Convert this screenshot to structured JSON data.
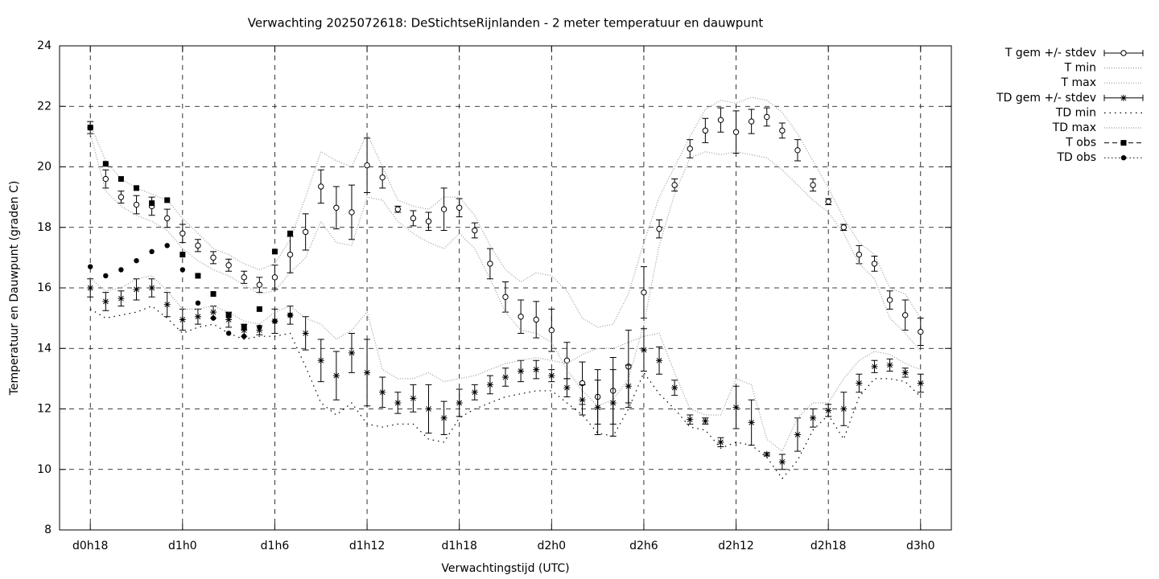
{
  "chart_data": {
    "type": "line",
    "title": "Verwachting 2025072618: DeStichtseRijnlanden - 2 meter temperatuur en dauwpunt",
    "xlabel": "Verwachtingstijd (UTC)",
    "ylabel": "Temperatuur en Dauwpunt (graden C)",
    "xlim": [
      -2,
      56
    ],
    "ylim": [
      8,
      24
    ],
    "xticks": [
      {
        "value": 0,
        "label": "d0h18"
      },
      {
        "value": 6,
        "label": "d1h0"
      },
      {
        "value": 12,
        "label": "d1h6"
      },
      {
        "value": 18,
        "label": "d1h12"
      },
      {
        "value": 24,
        "label": "d1h18"
      },
      {
        "value": 30,
        "label": "d2h0"
      },
      {
        "value": 36,
        "label": "d2h6"
      },
      {
        "value": 42,
        "label": "d2h12"
      },
      {
        "value": 48,
        "label": "d2h18"
      },
      {
        "value": 54,
        "label": "d3h0"
      }
    ],
    "yticks": [
      8,
      10,
      12,
      14,
      16,
      18,
      20,
      22,
      24
    ],
    "grid": true,
    "legend": "outside-right",
    "x": [
      0,
      1,
      2,
      3,
      4,
      5,
      6,
      7,
      8,
      9,
      10,
      11,
      12,
      13,
      14,
      15,
      16,
      17,
      18,
      19,
      20,
      21,
      22,
      23,
      24,
      25,
      26,
      27,
      28,
      29,
      30,
      31,
      32,
      33,
      34,
      35,
      36,
      37,
      38,
      39,
      40,
      41,
      42,
      43,
      44,
      45,
      46,
      47,
      48,
      49,
      50,
      51,
      52,
      53,
      54
    ],
    "series": [
      {
        "name": "T gem +/- stdev",
        "color": "#000000",
        "style": "errorbars-circle",
        "values": [
          21.3,
          19.6,
          19.0,
          18.75,
          18.7,
          18.3,
          17.8,
          17.4,
          17.0,
          16.75,
          16.35,
          16.1,
          16.35,
          17.1,
          17.85,
          19.35,
          18.65,
          18.5,
          20.05,
          19.65,
          18.6,
          18.3,
          18.2,
          18.6,
          18.65,
          17.9,
          16.8,
          15.7,
          15.05,
          14.95,
          14.6,
          13.6,
          12.85,
          12.4,
          12.6,
          13.4,
          15.85,
          17.95,
          19.4,
          20.6,
          21.2,
          21.55,
          21.15,
          21.5,
          21.65,
          21.2,
          20.55,
          19.4,
          18.85,
          18.0,
          17.1,
          16.8,
          15.6,
          15.1,
          14.55
        ],
        "errors": [
          0.2,
          0.3,
          0.2,
          0.3,
          0.3,
          0.3,
          0.3,
          0.2,
          0.2,
          0.2,
          0.2,
          0.25,
          0.4,
          0.6,
          0.6,
          0.55,
          0.7,
          0.9,
          0.9,
          0.35,
          0.1,
          0.25,
          0.3,
          0.7,
          0.3,
          0.25,
          0.5,
          0.5,
          0.55,
          0.6,
          0.7,
          0.6,
          0.7,
          0.9,
          1.1,
          1.2,
          0.85,
          0.3,
          0.2,
          0.3,
          0.4,
          0.4,
          0.7,
          0.4,
          0.3,
          0.25,
          0.35,
          0.2,
          0.1,
          0.1,
          0.3,
          0.25,
          0.3,
          0.5,
          0.45
        ]
      },
      {
        "name": "T min",
        "color": "#999999",
        "style": "dotted-fine",
        "values": [
          21.1,
          19.2,
          18.7,
          18.4,
          18.2,
          17.9,
          17.3,
          16.9,
          16.6,
          16.4,
          16.1,
          15.8,
          15.9,
          16.5,
          17.0,
          18.2,
          17.5,
          17.4,
          19.0,
          18.9,
          18.2,
          17.8,
          17.5,
          17.3,
          17.8,
          17.3,
          16.3,
          15.2,
          14.6,
          14.5,
          14.2,
          13.3,
          12.6,
          12.1,
          12.3,
          13.0,
          14.8,
          17.4,
          19.1,
          20.3,
          20.5,
          20.4,
          20.5,
          20.4,
          20.3,
          19.9,
          19.4,
          18.9,
          18.5,
          17.8,
          16.8,
          16.3,
          15.0,
          14.5,
          13.9
        ]
      },
      {
        "name": "T max",
        "color": "#999999",
        "style": "dotted-fine",
        "values": [
          21.4,
          20.2,
          19.6,
          19.3,
          19.1,
          18.9,
          18.3,
          17.8,
          17.3,
          17.1,
          16.8,
          16.6,
          16.8,
          17.6,
          19.0,
          20.5,
          20.2,
          20.0,
          21.1,
          20.0,
          18.9,
          18.7,
          18.6,
          19.0,
          19.0,
          18.4,
          17.4,
          16.6,
          16.2,
          16.5,
          16.4,
          15.9,
          15.0,
          14.7,
          14.8,
          15.8,
          17.5,
          19.0,
          20.0,
          21.0,
          21.9,
          22.2,
          22.1,
          22.3,
          22.2,
          21.8,
          21.1,
          20.2,
          19.3,
          18.3,
          17.5,
          17.1,
          16.0,
          15.8,
          15.0
        ]
      },
      {
        "name": "TD gem +/- stdev",
        "color": "#000000",
        "style": "errorbars-star",
        "values": [
          16.0,
          15.55,
          15.65,
          15.95,
          16.0,
          15.45,
          14.95,
          15.05,
          15.2,
          14.95,
          14.6,
          14.6,
          14.9,
          15.1,
          14.5,
          13.6,
          13.1,
          13.85,
          13.2,
          12.55,
          12.2,
          12.35,
          12.0,
          11.7,
          12.2,
          12.55,
          12.8,
          13.05,
          13.25,
          13.3,
          13.1,
          12.7,
          12.3,
          12.05,
          12.2,
          12.75,
          13.95,
          13.6,
          12.7,
          11.65,
          11.6,
          10.9,
          12.05,
          11.55,
          10.5,
          10.25,
          11.15,
          11.7,
          11.95,
          12.0,
          12.85,
          13.4,
          13.45,
          13.2,
          12.85
        ],
        "errors": [
          0.3,
          0.3,
          0.25,
          0.35,
          0.3,
          0.4,
          0.35,
          0.25,
          0.2,
          0.25,
          0.2,
          0.15,
          0.4,
          0.3,
          0.55,
          0.7,
          0.8,
          0.65,
          1.1,
          0.5,
          0.35,
          0.45,
          0.8,
          0.55,
          0.45,
          0.25,
          0.3,
          0.3,
          0.35,
          0.3,
          0.2,
          0.3,
          0.5,
          0.9,
          1.1,
          0.7,
          0.7,
          0.45,
          0.25,
          0.15,
          0.1,
          0.15,
          0.7,
          0.75,
          0.05,
          0.25,
          0.55,
          0.3,
          0.2,
          0.55,
          0.3,
          0.2,
          0.2,
          0.15,
          0.3
        ]
      },
      {
        "name": "TD min",
        "color": "#000000",
        "style": "dotted-coarse",
        "values": [
          15.3,
          15.0,
          15.1,
          15.2,
          15.4,
          15.0,
          14.5,
          14.7,
          14.8,
          14.5,
          14.3,
          14.4,
          14.4,
          14.5,
          13.4,
          12.2,
          11.8,
          12.2,
          11.5,
          11.4,
          11.5,
          11.5,
          11.0,
          10.9,
          11.7,
          12.0,
          12.2,
          12.4,
          12.5,
          12.6,
          12.6,
          12.2,
          11.8,
          11.2,
          11.1,
          12.0,
          13.2,
          12.5,
          12.0,
          11.4,
          11.3,
          10.7,
          10.9,
          10.8,
          10.4,
          9.7,
          10.3,
          11.3,
          11.8,
          11.0,
          12.4,
          13.0,
          13.0,
          12.9,
          12.4
        ]
      },
      {
        "name": "TD max",
        "color": "#999999",
        "style": "dotted-fine",
        "values": [
          16.3,
          15.9,
          16.0,
          16.3,
          16.4,
          15.9,
          15.3,
          15.3,
          15.4,
          15.2,
          14.9,
          14.8,
          15.2,
          15.4,
          15.0,
          14.8,
          14.3,
          14.6,
          15.2,
          13.3,
          13.0,
          13.0,
          13.2,
          12.9,
          13.0,
          13.1,
          13.3,
          13.5,
          13.6,
          13.7,
          13.6,
          13.5,
          13.8,
          14.0,
          14.0,
          14.2,
          14.4,
          14.5,
          13.2,
          12.0,
          11.8,
          11.8,
          13.0,
          12.8,
          11.0,
          10.6,
          11.7,
          12.2,
          12.2,
          13.0,
          13.6,
          13.9,
          13.8,
          13.5,
          13.3
        ]
      },
      {
        "name": "T obs",
        "color": "#000000",
        "style": "square",
        "values": [
          21.3,
          20.1,
          19.6,
          19.3,
          18.8,
          18.9,
          17.1,
          16.4,
          15.8,
          15.1,
          14.7,
          15.3,
          17.2,
          17.8,
          null,
          null,
          null,
          null,
          null,
          null,
          null,
          null,
          null,
          null,
          null,
          null,
          null,
          null,
          null,
          null,
          null,
          null,
          null,
          null,
          null,
          null,
          null,
          null,
          null,
          null,
          null,
          null,
          null,
          null,
          null,
          null,
          null,
          null,
          null,
          null,
          null,
          null,
          null,
          null,
          null
        ]
      },
      {
        "name": "TD obs",
        "color": "#000000",
        "style": "dot",
        "values": [
          16.7,
          16.4,
          16.6,
          16.9,
          17.2,
          17.4,
          16.6,
          15.5,
          15.0,
          14.5,
          14.4,
          14.7,
          14.9,
          15.1,
          null,
          null,
          null,
          null,
          null,
          null,
          null,
          null,
          null,
          null,
          null,
          null,
          null,
          null,
          null,
          null,
          null,
          null,
          null,
          null,
          null,
          null,
          null,
          null,
          null,
          null,
          null,
          null,
          null,
          null,
          null,
          null,
          null,
          null,
          null,
          null,
          null,
          null,
          null,
          null,
          null
        ]
      }
    ]
  }
}
